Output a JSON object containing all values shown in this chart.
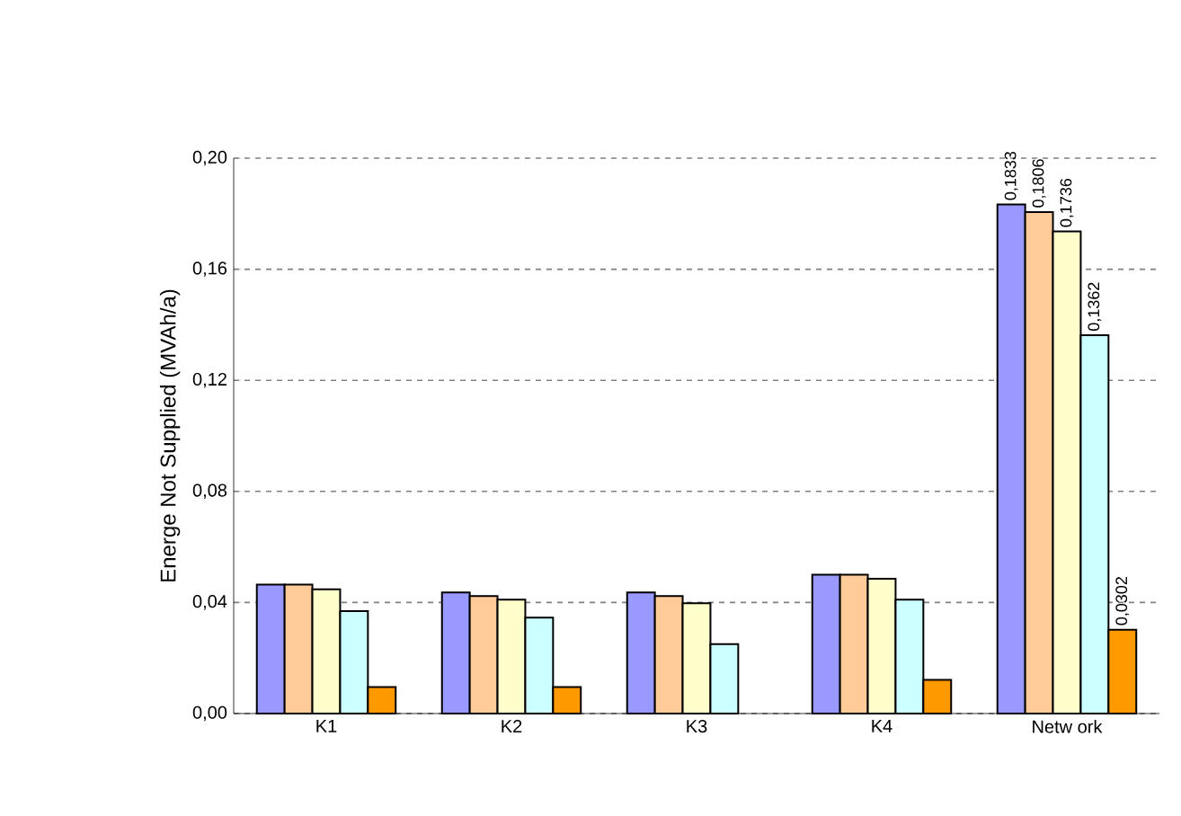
{
  "chart_data": {
    "type": "bar",
    "ylabel": "Energe Not Supplied (MVAh/a)",
    "categories": [
      "K1",
      "K2",
      "K3",
      "K4",
      "Netw ork"
    ],
    "series": [
      {
        "color": "#9999ff",
        "values": [
          0.0464,
          0.0436,
          0.0436,
          0.05,
          0.1833
        ],
        "value_labels": [
          null,
          null,
          null,
          null,
          "0,1833"
        ]
      },
      {
        "color": "#ffcc99",
        "values": [
          0.0464,
          0.0423,
          0.0423,
          0.05,
          0.1806
        ],
        "value_labels": [
          null,
          null,
          null,
          null,
          "0,1806"
        ]
      },
      {
        "color": "#ffffcc",
        "values": [
          0.0447,
          0.041,
          0.0397,
          0.0485,
          0.1736
        ],
        "value_labels": [
          null,
          null,
          null,
          null,
          "0,1736"
        ]
      },
      {
        "color": "#ccffff",
        "values": [
          0.0369,
          0.0345,
          0.025,
          0.041,
          0.1362
        ],
        "value_labels": [
          null,
          null,
          null,
          null,
          "0,1362"
        ]
      },
      {
        "color": "#ff9900",
        "values": [
          0.0095,
          0.0095,
          null,
          0.0121,
          0.0302
        ],
        "value_labels": [
          null,
          null,
          null,
          null,
          "0,0302"
        ]
      }
    ],
    "ylim": [
      0,
      0.2
    ],
    "yticks": [
      {
        "value": 0,
        "label": "0,00"
      },
      {
        "value": 0.04,
        "label": "0,04"
      },
      {
        "value": 0.08,
        "label": "0,08"
      },
      {
        "value": 0.12,
        "label": "0,12"
      },
      {
        "value": 0.16,
        "label": "0,16"
      },
      {
        "value": 0.2,
        "label": "0,20"
      }
    ],
    "grid": "y"
  }
}
